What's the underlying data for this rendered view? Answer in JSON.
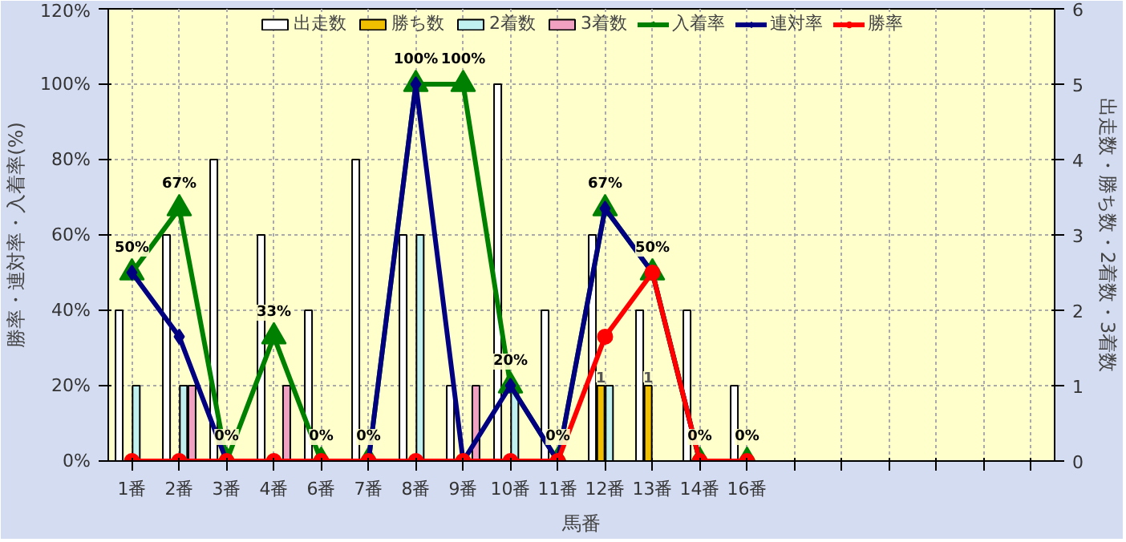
{
  "chart_data": {
    "type": "bar",
    "xlabel": "馬番",
    "ylabel": "勝率・連対率・入着率(%)",
    "y2label": "出走数・勝ち数・2着数・3着数",
    "categories": [
      "1番",
      "2番",
      "3番",
      "4番",
      "6番",
      "7番",
      "8番",
      "9番",
      "10番",
      "11番",
      "12番",
      "13番",
      "14番",
      "16番",
      null,
      null,
      null,
      null,
      null,
      null
    ],
    "series": [
      {
        "name": "出走数",
        "axis": "y2",
        "color": "#ffffff",
        "values": [
          2,
          3,
          4,
          3,
          2,
          4,
          3,
          1,
          5,
          2,
          3,
          2,
          2,
          1,
          null,
          null,
          null,
          null,
          null,
          null
        ]
      },
      {
        "name": "勝ち数",
        "axis": "y2",
        "color": "#f0c000",
        "values": [
          0,
          0,
          0,
          0,
          0,
          0,
          0,
          0,
          0,
          0,
          1,
          1,
          0,
          0,
          null,
          null,
          null,
          null,
          null,
          null
        ],
        "value_labels": [
          null,
          null,
          null,
          null,
          null,
          null,
          null,
          null,
          null,
          null,
          "1",
          "1",
          null,
          null,
          null,
          null,
          null,
          null,
          null,
          null
        ]
      },
      {
        "name": "2着数",
        "axis": "y2",
        "color": "#c0f0f0",
        "values": [
          1,
          1,
          0,
          0,
          0,
          0,
          3,
          0,
          1,
          0,
          1,
          0,
          0,
          0,
          null,
          null,
          null,
          null,
          null,
          null
        ]
      },
      {
        "name": "3着数",
        "axis": "y2",
        "color": "#f0a0c0",
        "values": [
          0,
          1,
          0,
          1,
          0,
          0,
          0,
          1,
          0,
          0,
          0,
          0,
          0,
          0,
          null,
          null,
          null,
          null,
          null,
          null
        ]
      },
      {
        "name": "入着率",
        "type": "line",
        "marker": "triangle",
        "color": "#008000",
        "values": [
          50,
          67,
          0,
          33,
          0,
          0,
          100,
          100,
          20,
          0,
          67,
          50,
          0,
          0,
          null,
          null,
          null,
          null,
          null,
          null
        ],
        "value_labels": [
          "50%",
          "67%",
          "0%",
          "33%",
          "0%",
          "0%",
          "100%",
          "100%",
          "20%",
          "0%",
          "67%",
          "50%",
          "0%",
          "0%",
          null,
          null,
          null,
          null,
          null,
          null
        ]
      },
      {
        "name": "連対率",
        "type": "line",
        "marker": "diamond",
        "color": "#000080",
        "values": [
          50,
          33,
          0,
          0,
          0,
          0,
          100,
          0,
          20,
          0,
          67,
          50,
          0,
          0,
          null,
          null,
          null,
          null,
          null,
          null
        ]
      },
      {
        "name": "勝率",
        "type": "line",
        "marker": "circle",
        "color": "#ff0000",
        "values": [
          0,
          0,
          0,
          0,
          0,
          0,
          0,
          0,
          0,
          0,
          33,
          50,
          0,
          0,
          null,
          null,
          null,
          null,
          null,
          null
        ]
      }
    ],
    "ylim": [
      0,
      120
    ],
    "yticks": [
      {
        "value": 0,
        "label": "0%"
      },
      {
        "value": 20,
        "label": "20%"
      },
      {
        "value": 40,
        "label": "40%"
      },
      {
        "value": 60,
        "label": "60%"
      },
      {
        "value": 80,
        "label": "80%"
      },
      {
        "value": 100,
        "label": "100%"
      },
      {
        "value": 120,
        "label": "120%"
      }
    ],
    "y2lim": [
      0,
      6
    ],
    "y2ticks": [
      0,
      1,
      2,
      3,
      4,
      5,
      6
    ],
    "grid": true,
    "legend": "top"
  }
}
